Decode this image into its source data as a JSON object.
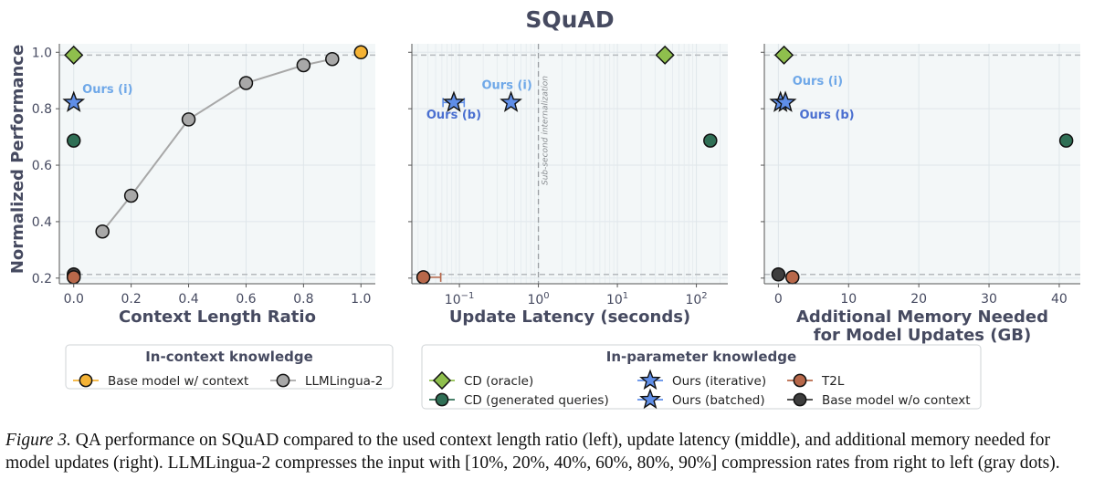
{
  "figure": {
    "title": "SQuAD",
    "caption_label": "Figure 3.",
    "caption_text": " QA performance on SQuAD compared to the used context length ratio (left), update latency (middle), and additional memory needed for model updates (right). LLMLingua-2 compresses the input with [10%, 20%, 40%, 60%, 80%, 90%] compression rates from right to left (gray dots)."
  },
  "colors": {
    "base_with_context": "#f5b335",
    "llmlingua": "#a8a8a8",
    "cd_oracle": "#8fbf4d",
    "cd_generated": "#2f6f55",
    "ours": "#5f8ee8",
    "t2l": "#b8684a",
    "base_without_context": "#3d3d3d",
    "label_iterative": "#6fa8e8",
    "label_batched": "#4a6fd0",
    "panel_bg": "#f3f7f8",
    "axis_text": "#464a60"
  },
  "chart_data": [
    {
      "type": "scatter",
      "panel": "left",
      "xlabel": "Context Length Ratio",
      "ylabel": "Normalized Performance",
      "xlim": [
        -0.05,
        1.05
      ],
      "ylim": [
        0.18,
        1.03
      ],
      "x_ticks": [
        "0.0",
        "0.2",
        "0.4",
        "0.6",
        "0.8",
        "1.0"
      ],
      "y_ticks": [
        "0.2",
        "0.4",
        "0.6",
        "0.8",
        "1.0"
      ],
      "grid": true,
      "reference_lines_y": [
        0.99,
        0.213
      ],
      "series": [
        {
          "key": "llmlingua",
          "marker": "circle",
          "connected": true,
          "points": [
            [
              0.1,
              0.365
            ],
            [
              0.2,
              0.492
            ],
            [
              0.4,
              0.762
            ],
            [
              0.6,
              0.891
            ],
            [
              0.8,
              0.954
            ],
            [
              0.9,
              0.976
            ]
          ]
        },
        {
          "key": "base_with_context",
          "marker": "circle",
          "points": [
            [
              1.0,
              1.0
            ]
          ]
        },
        {
          "key": "cd_oracle",
          "marker": "diamond",
          "points": [
            [
              0.0,
              0.99
            ]
          ]
        },
        {
          "key": "cd_generated",
          "marker": "circle",
          "points": [
            [
              0.0,
              0.687
            ]
          ]
        },
        {
          "key": "ours",
          "marker": "star",
          "points": [
            [
              0.0,
              0.822
            ]
          ]
        },
        {
          "key": "base_without_context",
          "marker": "circle",
          "points": [
            [
              0.0,
              0.213
            ]
          ]
        },
        {
          "key": "t2l",
          "marker": "circle",
          "points": [
            [
              0.0,
              0.203
            ]
          ]
        }
      ],
      "annotations": [
        {
          "text": "Ours (i)",
          "x": 0.03,
          "y": 0.855,
          "style": "iterative"
        }
      ]
    },
    {
      "type": "scatter",
      "panel": "middle",
      "xlabel": "Update Latency (seconds)",
      "ylabel": "",
      "x_scale": "log",
      "xlim": [
        0.025,
        250
      ],
      "ylim": [
        0.18,
        1.03
      ],
      "x_ticks": [
        {
          "value": 0.1,
          "base": "10",
          "exp": "−1"
        },
        {
          "value": 1,
          "base": "10",
          "exp": "0"
        },
        {
          "value": 10,
          "base": "10",
          "exp": "1"
        },
        {
          "value": 100,
          "base": "10",
          "exp": "2"
        }
      ],
      "grid": true,
      "reference_lines_y": [
        0.99,
        0.213
      ],
      "reference_line_x": {
        "value": 1,
        "label": "Sub-second internalization"
      },
      "series": [
        {
          "key": "cd_oracle",
          "marker": "diamond",
          "points": [
            [
              40,
              0.99
            ]
          ]
        },
        {
          "key": "cd_generated",
          "marker": "circle",
          "points": [
            [
              150,
              0.687
            ]
          ]
        },
        {
          "key": "ours",
          "marker": "star",
          "points": [
            [
              0.085,
              0.822
            ],
            [
              0.45,
              0.822
            ]
          ],
          "xerr": [
            [
              0.062,
              0.115
            ],
            null
          ]
        },
        {
          "key": "t2l",
          "marker": "circle",
          "points": [
            [
              0.035,
              0.203
            ]
          ],
          "xerr": [
            [
              0.035,
              0.058
            ]
          ]
        }
      ],
      "annotations": [
        {
          "text": "Ours (i)",
          "x": 0.4,
          "y": 0.87,
          "style": "iterative"
        },
        {
          "text": "Ours (b)",
          "x": 0.085,
          "y": 0.765,
          "style": "batched"
        }
      ]
    },
    {
      "type": "scatter",
      "panel": "right",
      "xlabel": "Additional Memory Needed\nfor Model Updates (GB)",
      "ylabel": "",
      "xlim": [
        -2,
        43
      ],
      "ylim": [
        0.18,
        1.03
      ],
      "x_ticks": [
        "0",
        "10",
        "20",
        "30",
        "40"
      ],
      "grid": true,
      "reference_lines_y": [
        0.99,
        0.213
      ],
      "series": [
        {
          "key": "cd_oracle",
          "marker": "diamond",
          "points": [
            [
              0.8,
              0.99
            ]
          ]
        },
        {
          "key": "cd_generated",
          "marker": "circle",
          "points": [
            [
              41,
              0.687
            ]
          ]
        },
        {
          "key": "ours",
          "marker": "star",
          "points": [
            [
              0.3,
              0.822
            ],
            [
              1.0,
              0.822
            ]
          ]
        },
        {
          "key": "base_without_context",
          "marker": "circle",
          "points": [
            [
              0.0,
              0.213
            ]
          ]
        },
        {
          "key": "t2l",
          "marker": "circle",
          "points": [
            [
              2.0,
              0.203
            ]
          ]
        }
      ],
      "annotations": [
        {
          "text": "Ours (i)",
          "x": 2.0,
          "y": 0.885,
          "style": "iterative"
        },
        {
          "text": "Ours (b)",
          "x": 3.0,
          "y": 0.765,
          "style": "batched"
        }
      ]
    }
  ],
  "legends": {
    "in_context": {
      "title": "In-context knowledge",
      "entries": [
        {
          "key": "base_with_context",
          "marker": "circle",
          "label": "Base model w/ context"
        },
        {
          "key": "llmlingua",
          "marker": "circle",
          "label": "LLMLingua-2"
        }
      ]
    },
    "in_parameter": {
      "title": "In-parameter knowledge",
      "entries": [
        {
          "key": "cd_oracle",
          "marker": "diamond",
          "label": "CD (oracle)"
        },
        {
          "key": "cd_generated",
          "marker": "circle",
          "label": "CD (generated queries)"
        },
        {
          "key": "ours",
          "marker": "star",
          "label": "Ours (iterative)"
        },
        {
          "key": "ours",
          "marker": "star",
          "label": "Ours (batched)"
        },
        {
          "key": "t2l",
          "marker": "circle",
          "label": "T2L"
        },
        {
          "key": "base_without_context",
          "marker": "circle",
          "label": "Base model w/o context"
        }
      ]
    }
  }
}
